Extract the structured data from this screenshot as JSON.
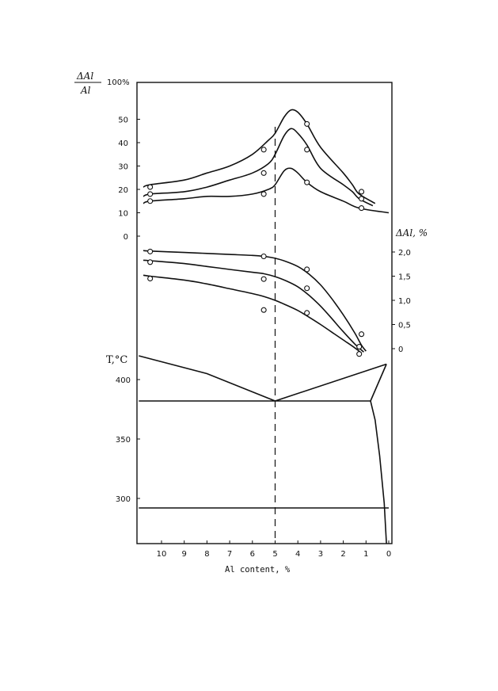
{
  "chart_data": {
    "type": "line",
    "xlabel": "Al content, %",
    "x_reversed": true,
    "xlim": [
      0,
      11
    ],
    "x_ticks": [
      "10",
      "9",
      "8",
      "7",
      "6",
      "5",
      "4",
      "3",
      "2",
      "1",
      "0"
    ],
    "marked_composition": 5,
    "panels": [
      {
        "id": "ratio",
        "ylabel_num": "ΔAl",
        "ylabel_den": "Al",
        "ylim": [
          0,
          100
        ],
        "y_ticks": [
          "0",
          "10",
          "20",
          "30",
          "40",
          "50",
          "100%"
        ],
        "series": [
          {
            "curve": [
              [
                10.8,
                21
              ],
              [
                10.5,
                22
              ],
              [
                9,
                24
              ],
              [
                8,
                27
              ],
              [
                7,
                30
              ],
              [
                6,
                35
              ],
              [
                5.3,
                41
              ],
              [
                5,
                44
              ],
              [
                4.6,
                51
              ],
              [
                4.3,
                54
              ],
              [
                4,
                53
              ],
              [
                3.6,
                48
              ],
              [
                3,
                38
              ],
              [
                2,
                27
              ],
              [
                1.6,
                22
              ],
              [
                1.3,
                18
              ],
              [
                0.6,
                14
              ]
            ],
            "markers": [
              [
                10.5,
                21
              ],
              [
                5.5,
                37
              ],
              [
                3.6,
                48
              ],
              [
                1.2,
                19
              ]
            ]
          },
          {
            "curve": [
              [
                10.8,
                17
              ],
              [
                10.5,
                18
              ],
              [
                9,
                19
              ],
              [
                8,
                21
              ],
              [
                7,
                24
              ],
              [
                6,
                27
              ],
              [
                5.3,
                31
              ],
              [
                5,
                35
              ],
              [
                4.6,
                43
              ],
              [
                4.3,
                46
              ],
              [
                4,
                44
              ],
              [
                3.6,
                39
              ],
              [
                3,
                29
              ],
              [
                2,
                22
              ],
              [
                1.6,
                19
              ],
              [
                1.3,
                16
              ],
              [
                0.7,
                13
              ]
            ],
            "markers": [
              [
                10.5,
                18
              ],
              [
                5.5,
                27
              ],
              [
                3.6,
                37
              ],
              [
                1.2,
                16
              ]
            ]
          },
          {
            "curve": [
              [
                10.8,
                14
              ],
              [
                10.5,
                15
              ],
              [
                9,
                16
              ],
              [
                8,
                17
              ],
              [
                7,
                17
              ],
              [
                6,
                18
              ],
              [
                5.3,
                20
              ],
              [
                5,
                22
              ],
              [
                4.6,
                28
              ],
              [
                4.3,
                29
              ],
              [
                4,
                27
              ],
              [
                3.6,
                23
              ],
              [
                3,
                19
              ],
              [
                2,
                15
              ],
              [
                1.3,
                12
              ],
              [
                0,
                10
              ]
            ],
            "markers": [
              [
                10.5,
                15
              ],
              [
                5.5,
                18
              ],
              [
                3.6,
                23
              ],
              [
                1.2,
                12
              ]
            ]
          }
        ]
      },
      {
        "id": "delta",
        "ylabel": "ΔAl, %",
        "ylim": [
          0,
          2
        ],
        "y_ticks": [
          "0",
          "0,5",
          "1,0",
          "1,5",
          "2,0"
        ],
        "series": [
          {
            "curve": [
              [
                10.8,
                2.03
              ],
              [
                10.5,
                2.02
              ],
              [
                9,
                1.99
              ],
              [
                8,
                1.97
              ],
              [
                7,
                1.95
              ],
              [
                6,
                1.93
              ],
              [
                5.5,
                1.91
              ],
              [
                5,
                1.87
              ],
              [
                4.5,
                1.8
              ],
              [
                4,
                1.7
              ],
              [
                3.5,
                1.54
              ],
              [
                3,
                1.32
              ],
              [
                2.5,
                1.03
              ],
              [
                2,
                0.7
              ],
              [
                1.5,
                0.33
              ],
              [
                1.2,
                0.07
              ],
              [
                1,
                -0.05
              ]
            ],
            "markers": [
              [
                10.5,
                2.01
              ],
              [
                5.5,
                1.91
              ],
              [
                3.6,
                1.64
              ],
              [
                1.2,
                0.3
              ]
            ]
          },
          {
            "curve": [
              [
                10.8,
                1.83
              ],
              [
                10.5,
                1.82
              ],
              [
                9,
                1.76
              ],
              [
                8,
                1.7
              ],
              [
                7,
                1.64
              ],
              [
                6,
                1.58
              ],
              [
                5.5,
                1.55
              ],
              [
                5,
                1.49
              ],
              [
                4.5,
                1.4
              ],
              [
                4,
                1.28
              ],
              [
                3.5,
                1.1
              ],
              [
                3,
                0.88
              ],
              [
                2.5,
                0.62
              ],
              [
                2,
                0.35
              ],
              [
                1.5,
                0.1
              ],
              [
                1.1,
                -0.07
              ]
            ],
            "markers": [
              [
                10.5,
                1.79
              ],
              [
                5.5,
                1.44
              ],
              [
                3.6,
                1.25
              ],
              [
                1.3,
                0.04
              ]
            ]
          },
          {
            "curve": [
              [
                10.8,
                1.52
              ],
              [
                10.5,
                1.5
              ],
              [
                9,
                1.42
              ],
              [
                8,
                1.34
              ],
              [
                7,
                1.24
              ],
              [
                6,
                1.14
              ],
              [
                5.5,
                1.08
              ],
              [
                5,
                1.0
              ],
              [
                4.5,
                0.9
              ],
              [
                4,
                0.79
              ],
              [
                3.5,
                0.65
              ],
              [
                3,
                0.5
              ],
              [
                2.5,
                0.34
              ],
              [
                2,
                0.18
              ],
              [
                1.5,
                0.02
              ],
              [
                1.2,
                -0.09
              ]
            ],
            "markers": [
              [
                10.5,
                1.45
              ],
              [
                5.5,
                0.8
              ],
              [
                3.6,
                0.74
              ],
              [
                1.3,
                -0.11
              ]
            ]
          }
        ]
      },
      {
        "id": "phase",
        "ylabel": "T,°C",
        "ylim": [
          288,
          415
        ],
        "y_ticks": [
          "300",
          "350",
          "400"
        ],
        "lines": [
          [
            [
              11,
              420
            ],
            [
              8,
              405
            ],
            [
              5,
              382
            ],
            [
              0.1,
              413
            ]
          ],
          [
            [
              11,
              382
            ],
            [
              0.8,
              382
            ]
          ],
          [
            [
              0.8,
              382
            ],
            [
              0.1,
              413
            ]
          ],
          [
            [
              0.8,
              382
            ],
            [
              0.6,
              366
            ],
            [
              0.4,
              336
            ],
            [
              0.2,
              296
            ],
            [
              0.1,
              262
            ]
          ],
          [
            [
              11,
              292
            ],
            [
              0,
              292
            ]
          ]
        ]
      }
    ]
  }
}
